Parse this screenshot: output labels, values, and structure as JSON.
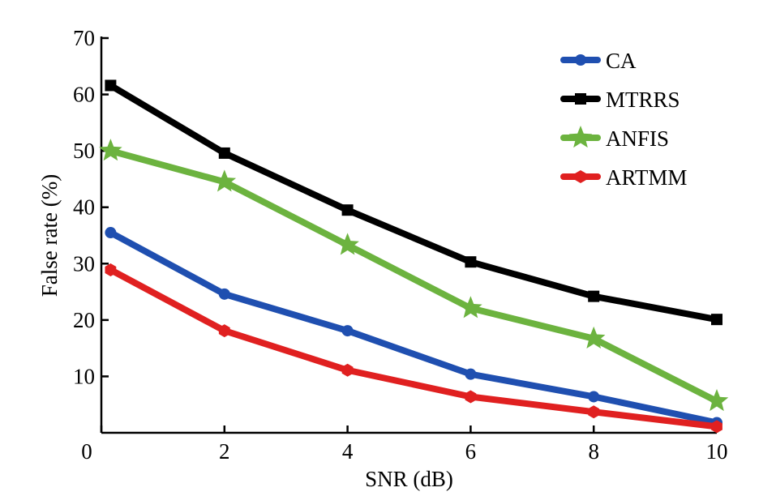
{
  "chart_data": {
    "type": "line",
    "title": "",
    "xlabel": "SNR (dB)",
    "ylabel": "False rate (%)",
    "xlim": [
      0,
      10
    ],
    "ylim": [
      0,
      70
    ],
    "x": [
      0,
      2,
      4,
      6,
      8,
      10
    ],
    "xticks": [
      "0",
      "2",
      "4",
      "6",
      "8",
      "10"
    ],
    "yticks": [
      "10",
      "20",
      "30",
      "40",
      "50",
      "60",
      "70"
    ],
    "legend_position": "top-right",
    "grid": false,
    "series": [
      {
        "name": "CA",
        "color": "#1f4fb0",
        "marker": "circle",
        "values": [
          35.5,
          24.6,
          18.1,
          10.4,
          6.4,
          1.8
        ]
      },
      {
        "name": "MTRRS",
        "color": "#000000",
        "marker": "square",
        "values": [
          61.6,
          49.6,
          39.5,
          30.3,
          24.2,
          20.1
        ]
      },
      {
        "name": "ANFIS",
        "color": "#6cb33f",
        "marker": "star",
        "values": [
          50.0,
          44.5,
          33.3,
          22.1,
          16.7,
          5.6
        ]
      },
      {
        "name": "ARTMM",
        "color": "#e02020",
        "marker": "hexagon",
        "values": [
          28.9,
          18.1,
          11.1,
          6.4,
          3.7,
          1.1
        ]
      }
    ]
  }
}
